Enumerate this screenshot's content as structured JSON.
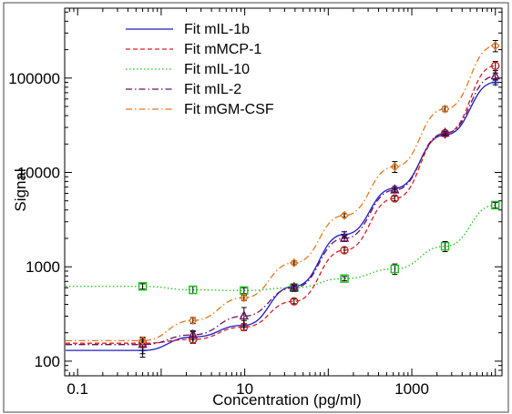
{
  "chart_data": {
    "type": "scatter",
    "xlabel": "Concentration (pg/ml)",
    "ylabel": "Signal",
    "x_scale": "log",
    "y_scale": "log",
    "xlim": [
      0.07,
      12000
    ],
    "ylim": [
      70,
      550000
    ],
    "x_ticks": [
      0.1,
      10,
      1000
    ],
    "x_tick_labels": [
      "0.1",
      "10",
      "1000"
    ],
    "y_ticks": [
      100,
      1000,
      10000,
      100000
    ],
    "y_tick_labels": [
      "100",
      "1000",
      "10000",
      "100000"
    ],
    "grid": false,
    "legend_position": "top-left",
    "series": [
      {
        "name": "Fit mIL-1b",
        "color": "#1c1cc8",
        "line": "solid",
        "marker": "plus",
        "x": [
          0.6,
          2.4,
          9.8,
          39,
          156,
          625,
          2500,
          10000
        ],
        "y": [
          130,
          180,
          240,
          620,
          2200,
          6800,
          25000,
          90000
        ],
        "yerr": [
          20,
          25,
          30,
          40,
          150,
          300,
          1000,
          5000
        ]
      },
      {
        "name": "Fit mMCP-1",
        "color": "#d42020",
        "line": "dashed",
        "marker": "circle",
        "x": [
          0.6,
          2.4,
          9.8,
          39,
          156,
          625,
          2500,
          10000
        ],
        "y": [
          155,
          170,
          230,
          430,
          1500,
          5300,
          26000,
          135000
        ],
        "yerr": [
          15,
          15,
          20,
          25,
          100,
          300,
          1000,
          15000
        ]
      },
      {
        "name": "Fit mIL-10",
        "color": "#20c020",
        "line": "dotted",
        "marker": "square",
        "x": [
          0.6,
          2.4,
          9.8,
          39,
          156,
          625,
          2500,
          10000
        ],
        "y": [
          620,
          570,
          560,
          600,
          750,
          950,
          1650,
          4500
        ],
        "yerr": [
          40,
          50,
          40,
          40,
          40,
          120,
          200,
          300
        ]
      },
      {
        "name": "Fit mIL-2",
        "color": "#6a1060",
        "line": "dashdot",
        "marker": "triangle",
        "x": [
          0.6,
          2.4,
          9.8,
          39,
          156,
          625,
          2500,
          10000
        ],
        "y": [
          150,
          190,
          300,
          600,
          2000,
          6500,
          26000,
          105000
        ],
        "yerr": [
          30,
          20,
          70,
          50,
          150,
          300,
          1000,
          8000
        ]
      },
      {
        "name": "Fit mGM-CSF",
        "color": "#e87820",
        "line": "dashdot",
        "marker": "diamond",
        "x": [
          0.6,
          2.4,
          9.8,
          39,
          156,
          625,
          2500,
          10000
        ],
        "y": [
          165,
          270,
          470,
          1100,
          3500,
          11500,
          47000,
          220000
        ],
        "yerr": [
          10,
          20,
          30,
          50,
          150,
          1500,
          3000,
          30000
        ]
      }
    ]
  }
}
